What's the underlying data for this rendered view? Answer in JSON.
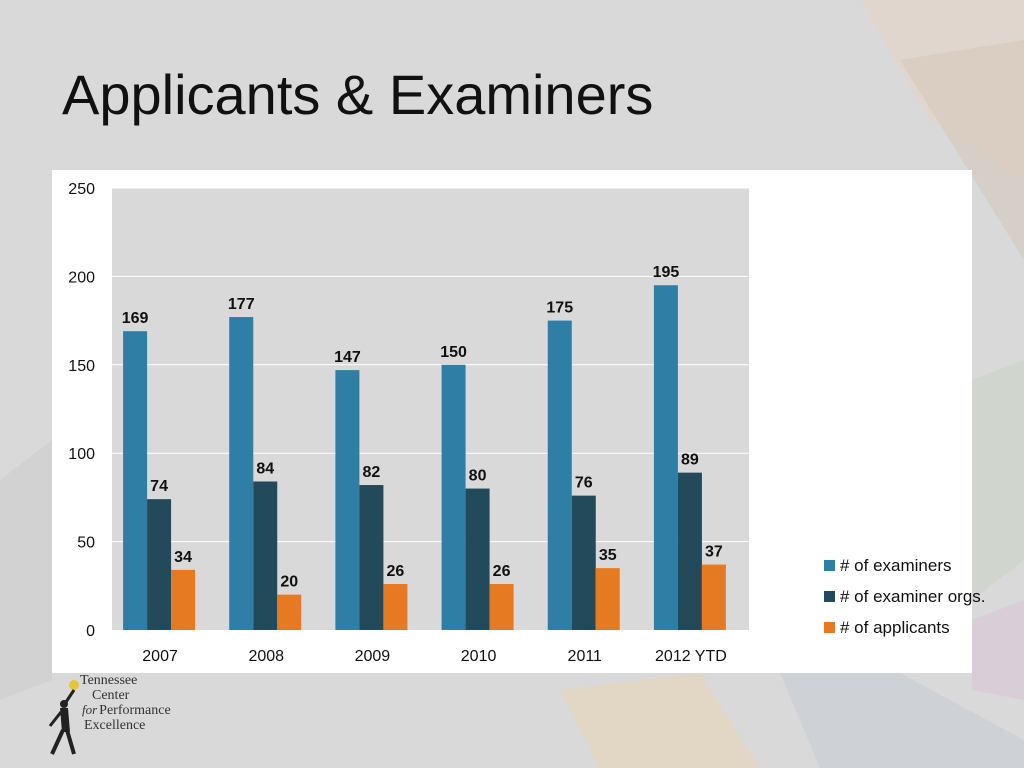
{
  "slide": {
    "title": "Applicants & Examiners",
    "background_color": "#d9d9d9"
  },
  "chart_data": {
    "type": "bar",
    "title": "",
    "xlabel": "",
    "ylabel": "",
    "categories": [
      "2007",
      "2008",
      "2009",
      "2010",
      "2011",
      "2012 YTD"
    ],
    "series": [
      {
        "name": "# of examiners",
        "color": "#2e7ea6",
        "values": [
          169,
          177,
          147,
          150,
          175,
          195
        ]
      },
      {
        "name": "# of examiner orgs.",
        "color": "#234a5a",
        "values": [
          74,
          84,
          82,
          80,
          76,
          89
        ]
      },
      {
        "name": "# of applicants",
        "color": "#e67a22",
        "values": [
          34,
          20,
          26,
          26,
          35,
          37
        ]
      }
    ],
    "ylim": [
      0,
      250
    ],
    "yticks": [
      "0",
      "50",
      "100",
      "150",
      "200",
      "250"
    ],
    "grid": true,
    "data_labels": true,
    "legend_position": "right",
    "plot_background": "#d9d9d9"
  },
  "logo": {
    "line1": "Tennessee",
    "line2": "Center",
    "line3_for": "for",
    "line3": "Performance",
    "line4": "Excellence"
  }
}
